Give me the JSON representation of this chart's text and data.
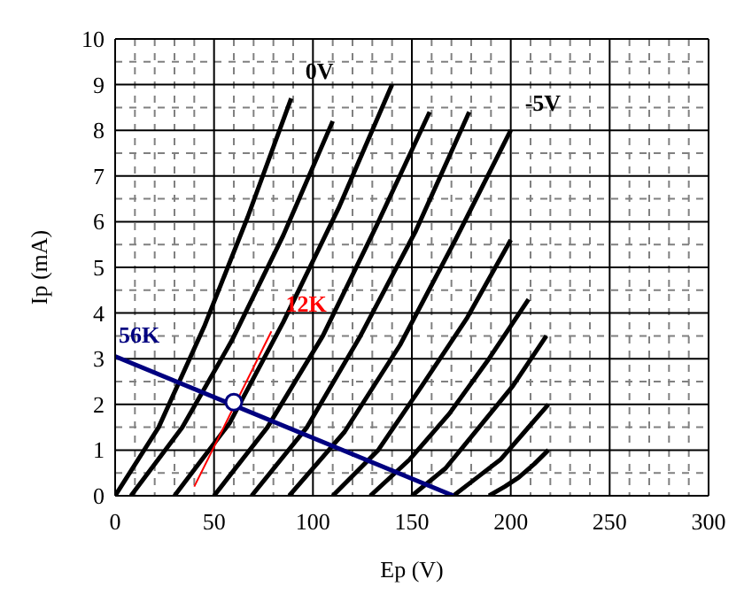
{
  "chart_data": {
    "type": "line",
    "xlabel": "Ep (V)",
    "ylabel": "Ip (mA)",
    "xlim": [
      0,
      300
    ],
    "xticks": [
      0,
      {
        "value": 10,
        "label": null
      },
      {
        "value": 20,
        "label": null
      },
      {
        "value": 30,
        "label": null
      },
      {
        "value": 40,
        "label": null
      },
      50,
      {
        "value": 60,
        "label": null
      },
      {
        "value": 70,
        "label": null
      },
      {
        "value": 80,
        "label": null
      },
      {
        "value": 90,
        "label": null
      },
      100,
      {
        "value": 110,
        "label": null
      },
      {
        "value": 120,
        "label": null
      },
      {
        "value": 130,
        "label": null
      },
      {
        "value": 140,
        "label": null
      },
      150,
      {
        "value": 160,
        "label": null
      },
      {
        "value": 170,
        "label": null
      },
      {
        "value": 180,
        "label": null
      },
      {
        "value": 190,
        "label": null
      },
      200,
      {
        "value": 210,
        "label": null
      },
      {
        "value": 220,
        "label": null
      },
      {
        "value": 230,
        "label": null
      },
      {
        "value": 240,
        "label": null
      },
      250,
      {
        "value": 260,
        "label": null
      },
      {
        "value": 270,
        "label": null
      },
      {
        "value": 280,
        "label": null
      },
      {
        "value": 290,
        "label": null
      },
      300
    ],
    "ylim": [
      0,
      10
    ],
    "yticks": [
      0,
      {
        "value": 0.5,
        "label": null
      },
      1,
      {
        "value": 1.5,
        "label": null
      },
      2,
      {
        "value": 2.5,
        "label": null
      },
      3,
      {
        "value": 3.5,
        "label": null
      },
      4,
      {
        "value": 4.5,
        "label": null
      },
      5,
      {
        "value": 5.5,
        "label": null
      },
      6,
      {
        "value": 6.5,
        "label": null
      },
      7,
      {
        "value": 7.5,
        "label": null
      },
      8,
      {
        "value": 8.5,
        "label": null
      },
      9,
      {
        "value": 9.5,
        "label": null
      },
      10
    ],
    "grid": true,
    "series": [
      {
        "name": "0V",
        "color": "#000000",
        "x": [
          0,
          22,
          45,
          67,
          89
        ],
        "values": [
          0,
          1.5,
          3.7,
          6.1,
          8.7
        ]
      },
      {
        "color": "#000000",
        "x": [
          8,
          34,
          59,
          85,
          110
        ],
        "values": [
          0,
          1.5,
          3.4,
          5.7,
          8.2
        ]
      },
      {
        "color": "#000000",
        "x": [
          30,
          58,
          85,
          113,
          140
        ],
        "values": [
          0,
          1.6,
          3.8,
          6.3,
          9
        ]
      },
      {
        "color": "#000000",
        "x": [
          50,
          77,
          105,
          132,
          159
        ],
        "values": [
          0,
          1.5,
          3.5,
          5.9,
          8.4
        ]
      },
      {
        "color": "#000000",
        "x": [
          69,
          97,
          124,
          152,
          179
        ],
        "values": [
          0,
          1.5,
          3.5,
          5.8,
          8.4
        ]
      },
      {
        "name": "-5V",
        "color": "#000000",
        "x": [
          88,
          116,
          144,
          172,
          200
        ],
        "values": [
          0,
          1.4,
          3.3,
          5.6,
          8
        ]
      },
      {
        "color": "#000000",
        "x": [
          110,
          133,
          155,
          178,
          200
        ],
        "values": [
          0,
          1,
          2.4,
          3.9,
          5.6
        ]
      },
      {
        "color": "#000000",
        "x": [
          129,
          149,
          169,
          189,
          209
        ],
        "values": [
          0,
          0.8,
          1.8,
          3,
          4.3
        ]
      },
      {
        "color": "#000000",
        "x": [
          150,
          167,
          184,
          201,
          218
        ],
        "values": [
          0,
          0.6,
          1.5,
          2.4,
          3.5
        ]
      },
      {
        "color": "#000000",
        "x": [
          171,
          183,
          195,
          207,
          219
        ],
        "values": [
          0,
          0.4,
          0.8,
          1.4,
          2
        ]
      },
      {
        "color": "#000000",
        "x": [
          189,
          197,
          204,
          212,
          219
        ],
        "values": [
          0,
          0.2,
          0.4,
          0.7,
          1
        ]
      },
      {
        "name": "12K",
        "color": "#ff0000",
        "x": [
          40,
          79
        ],
        "values": [
          0.2,
          3.6
        ]
      },
      {
        "name": "56K",
        "color": "#000080",
        "x": [
          0,
          171
        ],
        "values": [
          3.05,
          0
        ]
      },
      {
        "type": "scatter",
        "color": "#000080",
        "marker": "circle",
        "x": [
          60
        ],
        "values": [
          2.05
        ]
      }
    ]
  }
}
